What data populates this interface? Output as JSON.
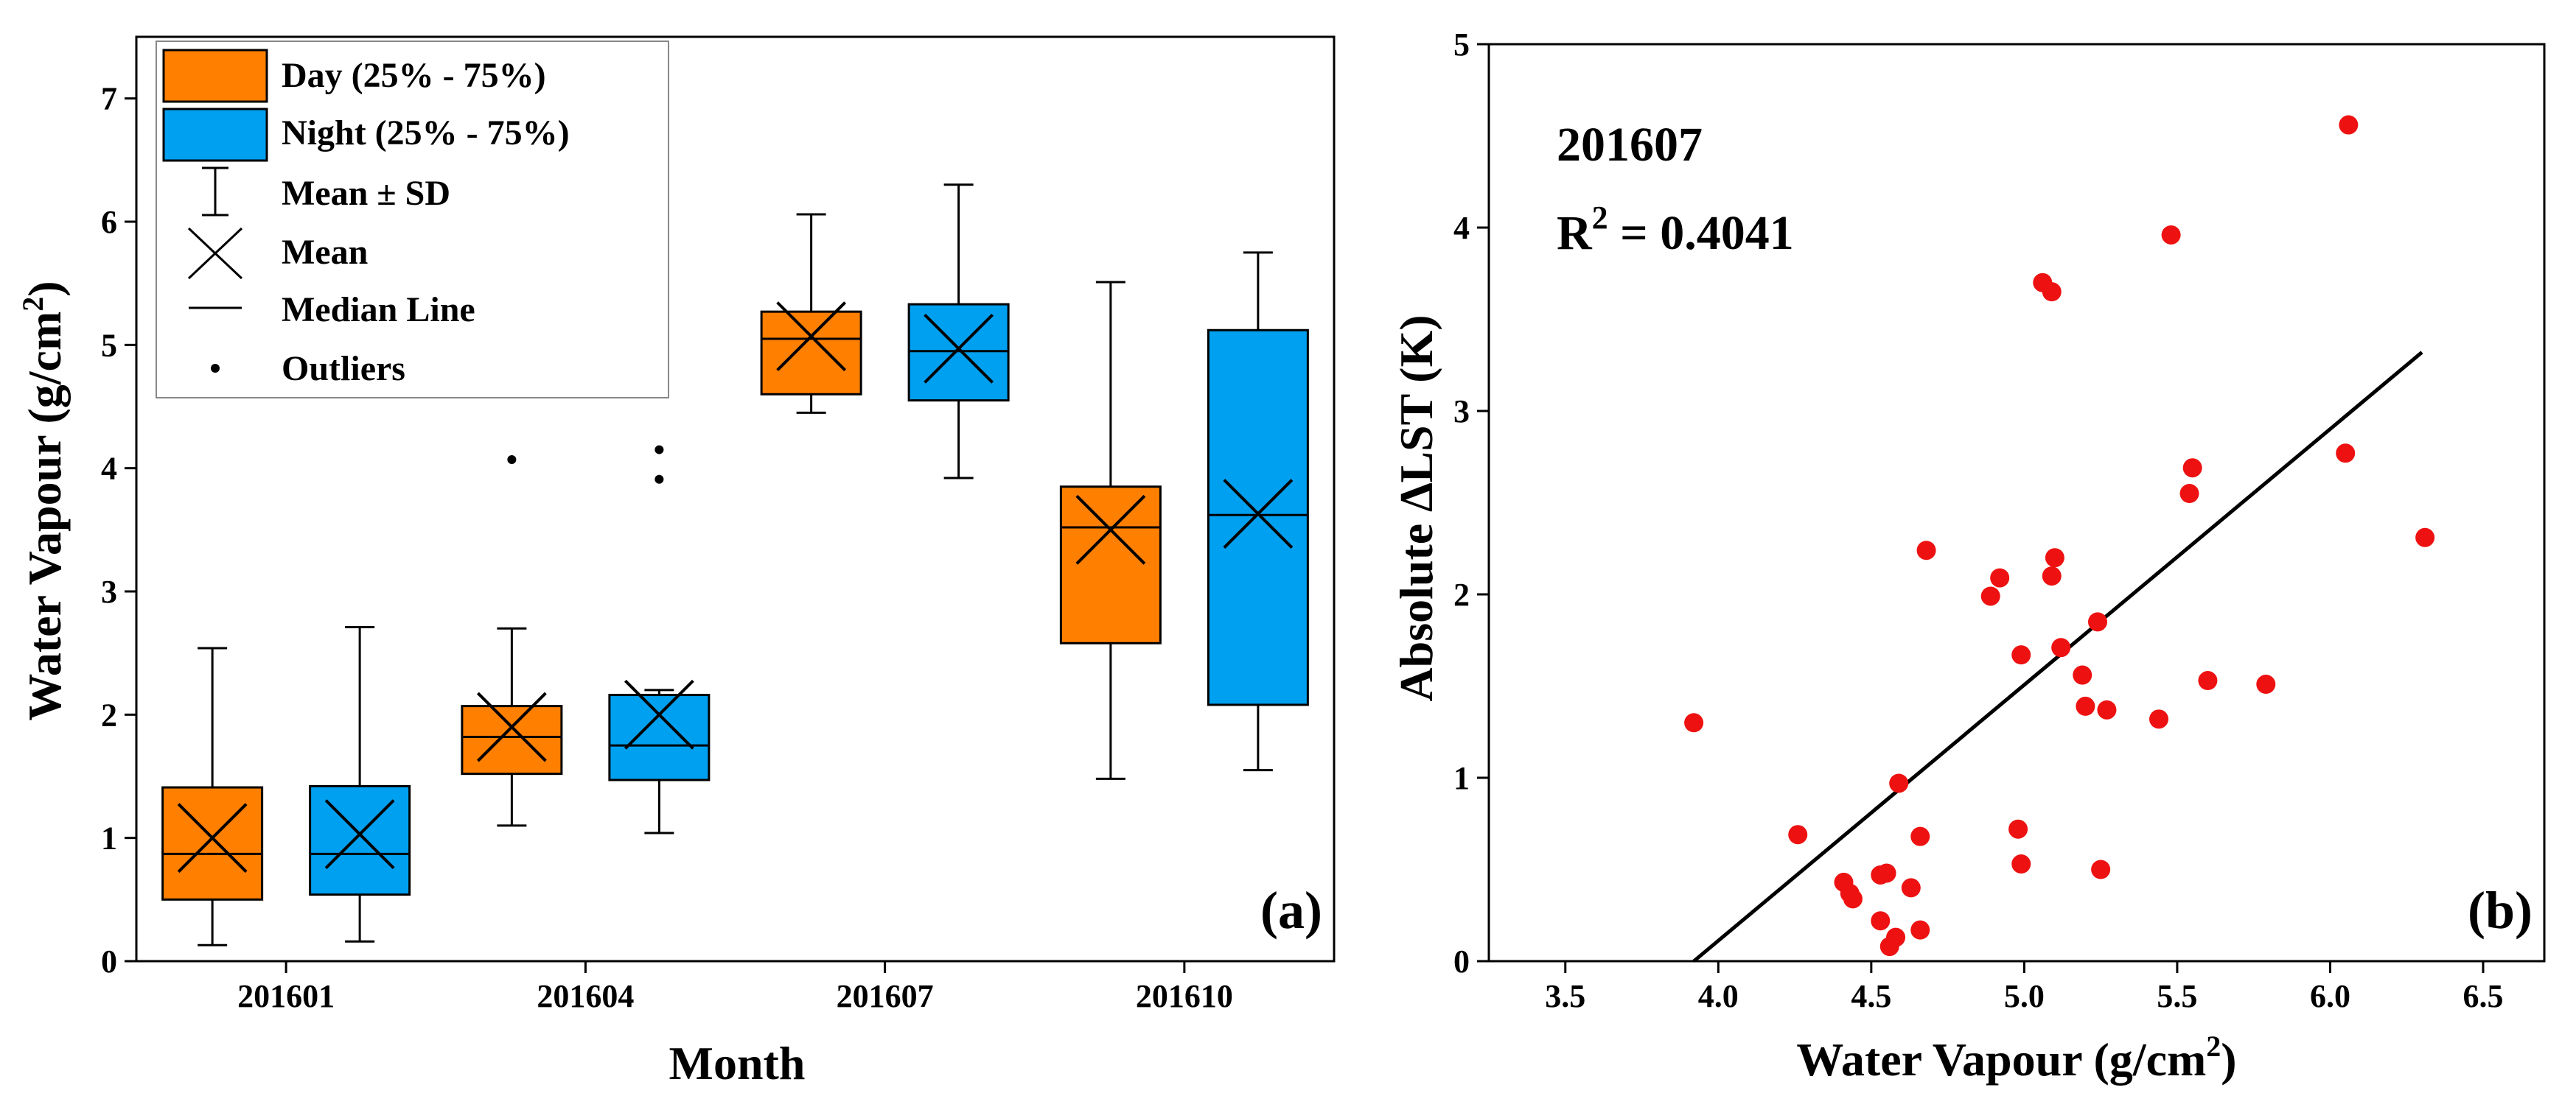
{
  "colors": {
    "day": "#ff7f00",
    "night": "#00a0f0",
    "scatter": "#ee1111",
    "line": "#000000"
  },
  "chart_data": [
    {
      "type": "box",
      "panel_label": "(a)",
      "xlabel": "Month",
      "ylabel": "Water Vapour (g/cm",
      "ylabel_sup": "2",
      "ylabel_close": ")",
      "ylim": [
        0,
        7.5
      ],
      "yticks": [
        "0",
        "1",
        "2",
        "3",
        "4",
        "5",
        "6",
        "7"
      ],
      "ytick_values": [
        0,
        1,
        2,
        3,
        4,
        5,
        6,
        7
      ],
      "categories": [
        "201601",
        "201604",
        "201607",
        "201610"
      ],
      "legend": {
        "day": "Day (25% - 75%)",
        "night": "Night (25% - 75%)",
        "sd": "Mean ± SD",
        "mean": "Mean",
        "median": "Median Line",
        "outliers": "Outliers"
      },
      "series": [
        {
          "name": "Day",
          "boxes": [
            {
              "category": "201601",
              "q1": 0.5,
              "median": 0.87,
              "q3": 1.41,
              "mean": 1.0,
              "low": 0.13,
              "high": 2.54,
              "outliers": []
            },
            {
              "category": "201604",
              "q1": 1.52,
              "median": 1.82,
              "q3": 2.07,
              "mean": 1.9,
              "low": 1.1,
              "high": 2.7,
              "outliers": [
                4.07
              ]
            },
            {
              "category": "201607",
              "q1": 4.6,
              "median": 5.05,
              "q3": 5.27,
              "mean": 5.07,
              "low": 4.45,
              "high": 6.06,
              "outliers": []
            },
            {
              "category": "201610",
              "q1": 2.58,
              "median": 3.52,
              "q3": 3.85,
              "mean": 3.5,
              "low": 1.48,
              "high": 5.51,
              "outliers": []
            }
          ]
        },
        {
          "name": "Night",
          "boxes": [
            {
              "category": "201601",
              "q1": 0.54,
              "median": 0.87,
              "q3": 1.42,
              "mean": 1.03,
              "low": 0.16,
              "high": 2.71,
              "outliers": []
            },
            {
              "category": "201604",
              "q1": 1.47,
              "median": 1.75,
              "q3": 2.16,
              "mean": 2.0,
              "low": 1.04,
              "high": 2.2,
              "outliers": [
                3.91,
                4.15
              ]
            },
            {
              "category": "201607",
              "q1": 4.55,
              "median": 4.95,
              "q3": 5.33,
              "mean": 4.97,
              "low": 3.92,
              "high": 6.3,
              "outliers": []
            },
            {
              "category": "201610",
              "q1": 2.08,
              "median": 3.62,
              "q3": 5.12,
              "mean": 3.63,
              "low": 1.55,
              "high": 5.75,
              "outliers": []
            }
          ]
        }
      ]
    },
    {
      "type": "scatter",
      "panel_label": "(b)",
      "annotation_month": "201607",
      "r2_prefix": "R",
      "r2_sup": "2",
      "r2_value": " = 0.4041",
      "xlabel": "Water Vapour (g/cm",
      "xlabel_sup": "2",
      "xlabel_close": ")",
      "ylabel": "Absolute ∆LST (K)",
      "xlim": [
        3.25,
        6.7
      ],
      "ylim": [
        0,
        5
      ],
      "xticks": [
        "3.5",
        "4.0",
        "4.5",
        "5.0",
        "5.5",
        "6.0",
        "6.5"
      ],
      "xtick_values": [
        3.5,
        4.0,
        4.5,
        5.0,
        5.5,
        6.0,
        6.5
      ],
      "yticks": [
        "0",
        "1",
        "2",
        "3",
        "4",
        "5"
      ],
      "ytick_values": [
        0,
        1,
        2,
        3,
        4,
        5
      ],
      "fit_line": {
        "x": [
          3.92,
          6.3
        ],
        "y": [
          0.0,
          3.32
        ]
      },
      "points": [
        [
          3.92,
          1.3
        ],
        [
          4.26,
          0.69
        ],
        [
          4.41,
          0.43
        ],
        [
          4.43,
          0.37
        ],
        [
          4.44,
          0.34
        ],
        [
          4.53,
          0.47
        ],
        [
          4.55,
          0.48
        ],
        [
          4.53,
          0.22
        ],
        [
          4.56,
          0.08
        ],
        [
          4.58,
          0.13
        ],
        [
          4.59,
          0.97
        ],
        [
          4.63,
          0.4
        ],
        [
          4.66,
          0.68
        ],
        [
          4.66,
          0.17
        ],
        [
          4.68,
          2.24
        ],
        [
          4.89,
          1.99
        ],
        [
          4.92,
          2.09
        ],
        [
          4.98,
          0.72
        ],
        [
          4.99,
          0.53
        ],
        [
          4.99,
          1.67
        ],
        [
          5.06,
          3.7
        ],
        [
          5.09,
          3.65
        ],
        [
          5.09,
          2.1
        ],
        [
          5.1,
          2.2
        ],
        [
          5.12,
          1.71
        ],
        [
          5.19,
          1.56
        ],
        [
          5.2,
          1.39
        ],
        [
          5.24,
          1.85
        ],
        [
          5.25,
          0.5
        ],
        [
          5.27,
          1.37
        ],
        [
          5.44,
          1.32
        ],
        [
          5.48,
          3.96
        ],
        [
          5.54,
          2.55
        ],
        [
          5.55,
          2.69
        ],
        [
          5.6,
          1.53
        ],
        [
          5.79,
          1.51
        ],
        [
          6.05,
          2.77
        ],
        [
          6.06,
          4.56
        ],
        [
          6.31,
          2.31
        ]
      ]
    }
  ]
}
